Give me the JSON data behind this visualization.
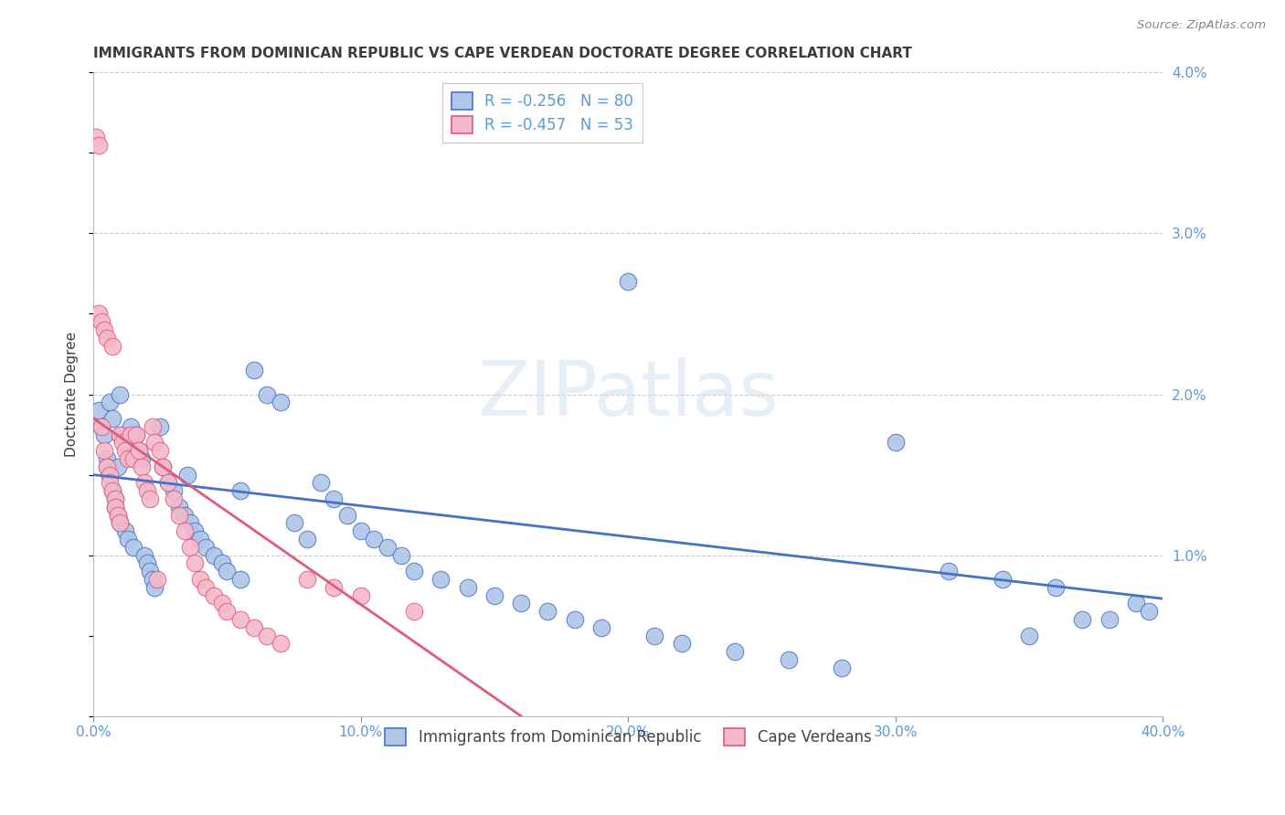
{
  "title": "IMMIGRANTS FROM DOMINICAN REPUBLIC VS CAPE VERDEAN DOCTORATE DEGREE CORRELATION CHART",
  "source": "Source: ZipAtlas.com",
  "ylabel": "Doctorate Degree",
  "xlim": [
    0.0,
    0.4
  ],
  "ylim": [
    0.0,
    0.04
  ],
  "legend1_label": "R = -0.256   N = 80",
  "legend2_label": "R = -0.457   N = 53",
  "color_blue": "#aec6e8",
  "color_pink": "#f4b8cb",
  "line_blue": "#4472c4",
  "line_pink": "#e05a7a",
  "title_color": "#3c3c3c",
  "axis_label_color": "#5b9bd5",
  "grid_color": "#cccccc",
  "background": "#ffffff",
  "blue_x": [
    0.002,
    0.003,
    0.004,
    0.005,
    0.005,
    0.006,
    0.006,
    0.007,
    0.007,
    0.008,
    0.008,
    0.009,
    0.009,
    0.01,
    0.01,
    0.011,
    0.012,
    0.012,
    0.013,
    0.014,
    0.015,
    0.016,
    0.017,
    0.018,
    0.019,
    0.02,
    0.021,
    0.022,
    0.023,
    0.025,
    0.026,
    0.028,
    0.03,
    0.032,
    0.034,
    0.036,
    0.038,
    0.04,
    0.042,
    0.045,
    0.048,
    0.05,
    0.055,
    0.06,
    0.065,
    0.07,
    0.075,
    0.08,
    0.085,
    0.09,
    0.095,
    0.1,
    0.105,
    0.11,
    0.115,
    0.12,
    0.13,
    0.14,
    0.15,
    0.16,
    0.17,
    0.18,
    0.19,
    0.2,
    0.21,
    0.22,
    0.24,
    0.26,
    0.28,
    0.3,
    0.32,
    0.34,
    0.35,
    0.36,
    0.37,
    0.38,
    0.39,
    0.395,
    0.035,
    0.055
  ],
  "blue_y": [
    0.019,
    0.018,
    0.0175,
    0.016,
    0.0155,
    0.015,
    0.0195,
    0.014,
    0.0185,
    0.0135,
    0.013,
    0.0125,
    0.0155,
    0.012,
    0.02,
    0.0175,
    0.0115,
    0.017,
    0.011,
    0.018,
    0.0105,
    0.0175,
    0.0165,
    0.016,
    0.01,
    0.0095,
    0.009,
    0.0085,
    0.008,
    0.018,
    0.0155,
    0.0145,
    0.014,
    0.013,
    0.0125,
    0.012,
    0.0115,
    0.011,
    0.0105,
    0.01,
    0.0095,
    0.009,
    0.0085,
    0.0215,
    0.02,
    0.0195,
    0.012,
    0.011,
    0.0145,
    0.0135,
    0.0125,
    0.0115,
    0.011,
    0.0105,
    0.01,
    0.009,
    0.0085,
    0.008,
    0.0075,
    0.007,
    0.0065,
    0.006,
    0.0055,
    0.027,
    0.005,
    0.0045,
    0.004,
    0.0035,
    0.003,
    0.017,
    0.009,
    0.0085,
    0.005,
    0.008,
    0.006,
    0.006,
    0.007,
    0.0065,
    0.015,
    0.014
  ],
  "pink_x": [
    0.001,
    0.002,
    0.002,
    0.003,
    0.003,
    0.004,
    0.004,
    0.005,
    0.005,
    0.006,
    0.006,
    0.007,
    0.007,
    0.008,
    0.008,
    0.009,
    0.01,
    0.01,
    0.011,
    0.012,
    0.013,
    0.014,
    0.015,
    0.016,
    0.017,
    0.018,
    0.019,
    0.02,
    0.021,
    0.022,
    0.023,
    0.024,
    0.025,
    0.026,
    0.028,
    0.03,
    0.032,
    0.034,
    0.036,
    0.038,
    0.04,
    0.042,
    0.045,
    0.048,
    0.05,
    0.055,
    0.06,
    0.065,
    0.07,
    0.08,
    0.09,
    0.1,
    0.12
  ],
  "pink_y": [
    0.036,
    0.0355,
    0.025,
    0.0245,
    0.018,
    0.024,
    0.0165,
    0.0235,
    0.0155,
    0.015,
    0.0145,
    0.023,
    0.014,
    0.0135,
    0.013,
    0.0125,
    0.012,
    0.0175,
    0.017,
    0.0165,
    0.016,
    0.0175,
    0.016,
    0.0175,
    0.0165,
    0.0155,
    0.0145,
    0.014,
    0.0135,
    0.018,
    0.017,
    0.0085,
    0.0165,
    0.0155,
    0.0145,
    0.0135,
    0.0125,
    0.0115,
    0.0105,
    0.0095,
    0.0085,
    0.008,
    0.0075,
    0.007,
    0.0065,
    0.006,
    0.0055,
    0.005,
    0.0045,
    0.0085,
    0.008,
    0.0075,
    0.0065
  ],
  "blue_line_x": [
    0.0,
    0.4
  ],
  "blue_line_y": [
    0.015,
    0.0073
  ],
  "pink_line_x": [
    0.0,
    0.16
  ],
  "pink_line_y": [
    0.0185,
    0.0
  ],
  "watermark_text": "ZIPatlas"
}
